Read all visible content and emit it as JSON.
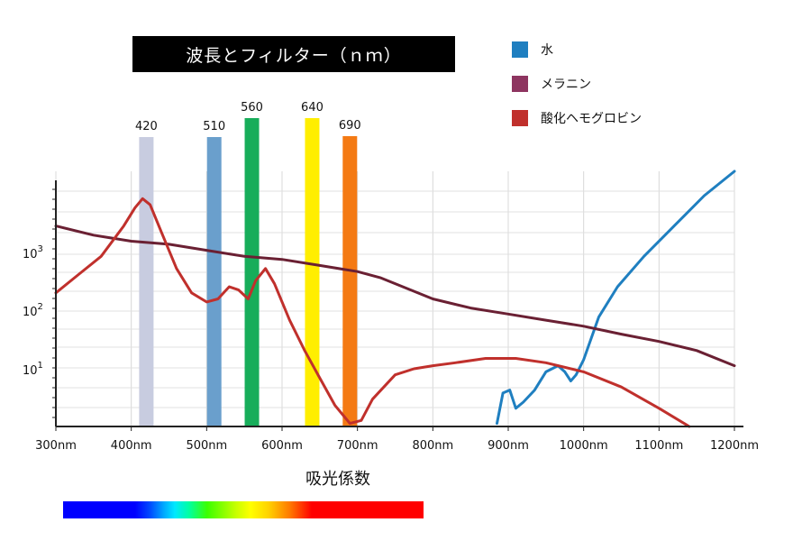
{
  "title": "波長とフィルター（ｎｍ）",
  "xlabel": "吸光係数",
  "legend": [
    {
      "label": "水",
      "color": "#1f7fc0"
    },
    {
      "label": "メラニン",
      "color": "#8e3560"
    },
    {
      "label": "酸化ヘモグロビン",
      "color": "#c0302c"
    }
  ],
  "filters": [
    {
      "label": "420",
      "color": "#c8cce0"
    },
    {
      "label": "510",
      "color": "#6a9fcc"
    },
    {
      "label": "560",
      "color": "#17ad5a"
    },
    {
      "label": "640",
      "color": "#ffee00"
    },
    {
      "label": "690",
      "color": "#f47a14"
    }
  ],
  "x_ticks": [
    "300nm",
    "400nm",
    "500nm",
    "600nm",
    "700nm",
    "800nm",
    "900nm",
    "1000nm",
    "1100nm",
    "1200nm"
  ],
  "y_ticks": [
    {
      "base": "10",
      "exp": "1"
    },
    {
      "base": "10",
      "exp": "2"
    },
    {
      "base": "10",
      "exp": "3"
    }
  ],
  "chart_data": {
    "type": "line",
    "xlim": [
      300,
      1200
    ],
    "ylog_range": [
      0.0,
      4.2
    ],
    "grid": true,
    "legend_position": "top-right",
    "filter_bars": [
      {
        "wavelength": 420,
        "label": "420",
        "color": "#c8cce0"
      },
      {
        "wavelength": 510,
        "label": "510",
        "color": "#6a9fcc"
      },
      {
        "wavelength": 560,
        "label": "560",
        "color": "#17ad5a"
      },
      {
        "wavelength": 640,
        "label": "640",
        "color": "#ffee00"
      },
      {
        "wavelength": 690,
        "label": "690",
        "color": "#f47a14"
      }
    ],
    "series": [
      {
        "name": "水",
        "color": "#1f7fc0",
        "points": [
          [
            885,
            0.05
          ],
          [
            893,
            0.55
          ],
          [
            902,
            0.6
          ],
          [
            910,
            0.3
          ],
          [
            920,
            0.4
          ],
          [
            935,
            0.6
          ],
          [
            950,
            0.9
          ],
          [
            966,
            1.0
          ],
          [
            975,
            0.9
          ],
          [
            983,
            0.75
          ],
          [
            990,
            0.85
          ],
          [
            1000,
            1.1
          ],
          [
            1020,
            1.8
          ],
          [
            1045,
            2.3
          ],
          [
            1080,
            2.8
          ],
          [
            1120,
            3.3
          ],
          [
            1160,
            3.8
          ],
          [
            1200,
            4.2
          ]
        ]
      },
      {
        "name": "メラニン",
        "color": "#6a2033",
        "points": [
          [
            300,
            3.3
          ],
          [
            350,
            3.15
          ],
          [
            400,
            3.05
          ],
          [
            450,
            3.0
          ],
          [
            500,
            2.9
          ],
          [
            550,
            2.8
          ],
          [
            600,
            2.75
          ],
          [
            650,
            2.65
          ],
          [
            700,
            2.55
          ],
          [
            730,
            2.45
          ],
          [
            760,
            2.3
          ],
          [
            800,
            2.1
          ],
          [
            850,
            1.95
          ],
          [
            900,
            1.85
          ],
          [
            950,
            1.75
          ],
          [
            1000,
            1.65
          ],
          [
            1050,
            1.52
          ],
          [
            1100,
            1.4
          ],
          [
            1150,
            1.25
          ],
          [
            1200,
            1.0
          ]
        ]
      },
      {
        "name": "酸化ヘモグロビン",
        "color": "#c0302c",
        "points": [
          [
            300,
            2.2
          ],
          [
            330,
            2.5
          ],
          [
            360,
            2.8
          ],
          [
            390,
            3.3
          ],
          [
            405,
            3.6
          ],
          [
            415,
            3.75
          ],
          [
            425,
            3.65
          ],
          [
            440,
            3.2
          ],
          [
            460,
            2.6
          ],
          [
            480,
            2.2
          ],
          [
            500,
            2.05
          ],
          [
            515,
            2.1
          ],
          [
            530,
            2.3
          ],
          [
            542,
            2.25
          ],
          [
            555,
            2.1
          ],
          [
            565,
            2.4
          ],
          [
            578,
            2.6
          ],
          [
            590,
            2.35
          ],
          [
            610,
            1.75
          ],
          [
            630,
            1.25
          ],
          [
            650,
            0.8
          ],
          [
            670,
            0.35
          ],
          [
            690,
            0.05
          ],
          [
            705,
            0.1
          ],
          [
            720,
            0.45
          ],
          [
            750,
            0.85
          ],
          [
            775,
            0.95
          ],
          [
            800,
            1.0
          ],
          [
            830,
            1.05
          ],
          [
            870,
            1.12
          ],
          [
            910,
            1.12
          ],
          [
            950,
            1.05
          ],
          [
            1000,
            0.9
          ],
          [
            1050,
            0.65
          ],
          [
            1100,
            0.3
          ],
          [
            1140,
            0.0
          ]
        ]
      }
    ]
  }
}
